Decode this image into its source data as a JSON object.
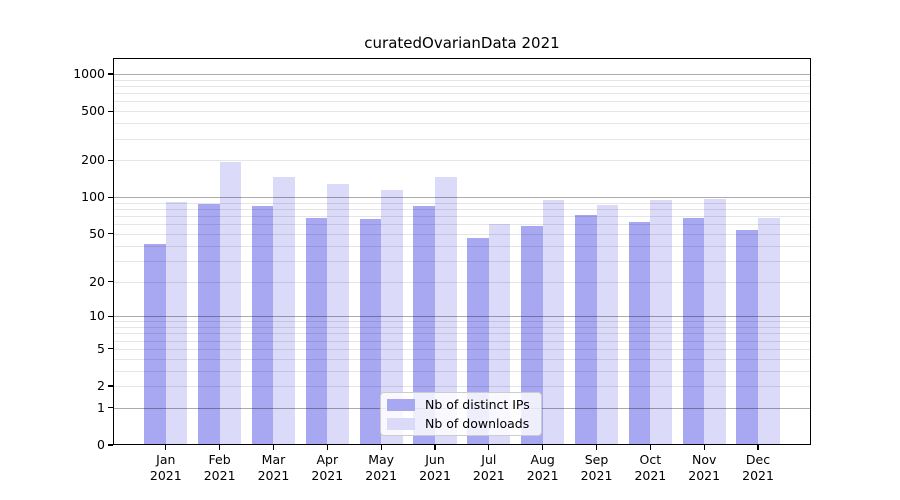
{
  "title": "curatedOvarianData 2021",
  "chart_data": {
    "type": "bar",
    "scale": "log1p",
    "title": "curatedOvarianData 2021",
    "xlabel": "",
    "ylabel": "",
    "categories": [
      "Jan 2021",
      "Feb 2021",
      "Mar 2021",
      "Apr 2021",
      "May 2021",
      "Jun 2021",
      "Jul 2021",
      "Aug 2021",
      "Sep 2021",
      "Oct 2021",
      "Nov 2021",
      "Dec 2021"
    ],
    "series": [
      {
        "name": "Nb of distinct IPs",
        "color": "#a8a8f2",
        "values": [
          41,
          88,
          84,
          67,
          66,
          85,
          46,
          58,
          72,
          63,
          68,
          54
        ]
      },
      {
        "name": "Nb of downloads",
        "color": "#dbdbf9",
        "values": [
          91,
          195,
          145,
          129,
          115,
          147,
          60,
          95,
          86,
          95,
          96,
          68
        ]
      }
    ],
    "yticks": [
      0,
      1,
      2,
      5,
      10,
      20,
      50,
      100,
      200,
      500,
      1000
    ],
    "ylim": [
      0,
      1348
    ],
    "grid": "both",
    "legend_position": "lower center"
  }
}
